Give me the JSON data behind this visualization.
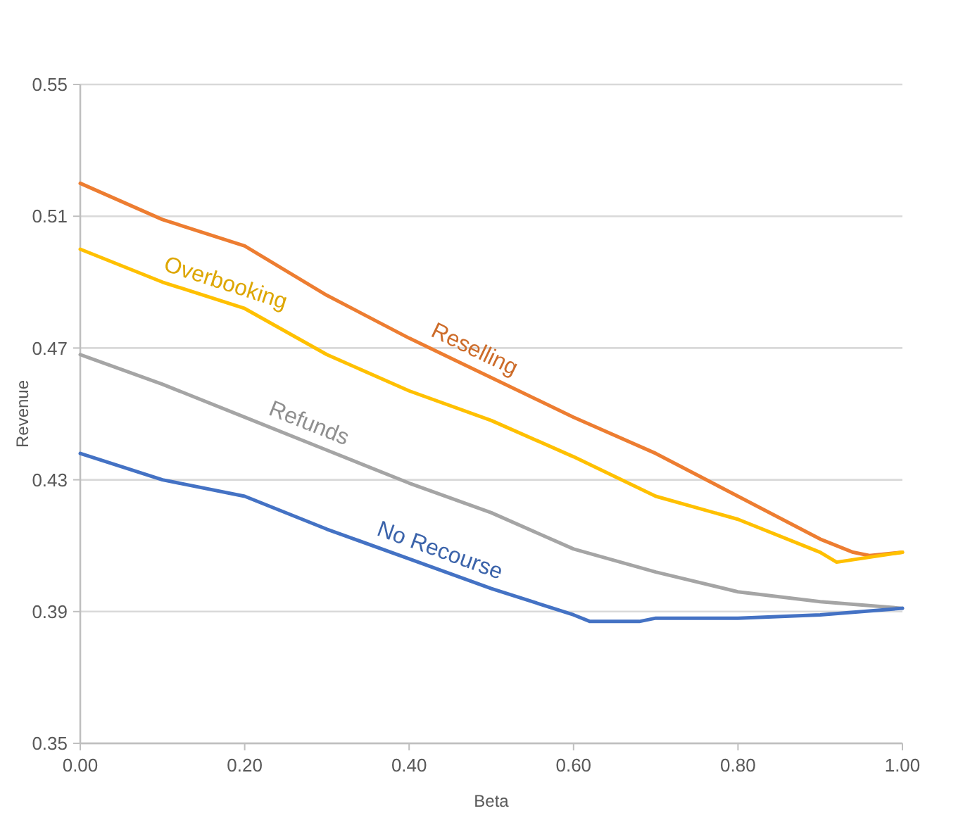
{
  "chart_data": {
    "type": "line",
    "xlabel": "Beta",
    "ylabel": "Revenue",
    "xlim": [
      0,
      1
    ],
    "ylim": [
      0.35,
      0.55
    ],
    "xticks": [
      {
        "value": 0,
        "label": "0.00"
      },
      {
        "value": 0.2,
        "label": "0.20"
      },
      {
        "value": 0.4,
        "label": "0.40"
      },
      {
        "value": 0.6,
        "label": "0.60"
      },
      {
        "value": 0.8,
        "label": "0.80"
      },
      {
        "value": 1,
        "label": "1.00"
      }
    ],
    "yticks": [
      0.35,
      0.39,
      0.43,
      0.47,
      0.51,
      0.55
    ],
    "grid": "y",
    "marker": "none",
    "line_style": "solid",
    "series": [
      {
        "name": "Reselling",
        "color": "#ed7d31",
        "x": [
          0,
          0.1,
          0.2,
          0.3,
          0.4,
          0.5,
          0.6,
          0.7,
          0.8,
          0.9,
          0.94,
          0.96,
          1
        ],
        "values": [
          0.52,
          0.509,
          0.501,
          0.486,
          0.473,
          0.461,
          0.449,
          0.438,
          0.425,
          0.412,
          0.408,
          0.407,
          0.408
        ]
      },
      {
        "name": "Overbooking",
        "color": "#ffc000",
        "x": [
          0,
          0.1,
          0.2,
          0.3,
          0.4,
          0.5,
          0.6,
          0.7,
          0.8,
          0.9,
          0.92,
          1
        ],
        "values": [
          0.5,
          0.49,
          0.482,
          0.468,
          0.457,
          0.448,
          0.437,
          0.425,
          0.418,
          0.408,
          0.405,
          0.408
        ]
      },
      {
        "name": "Refunds",
        "color": "#a5a5a5",
        "x": [
          0,
          0.1,
          0.2,
          0.3,
          0.4,
          0.5,
          0.6,
          0.7,
          0.8,
          0.9,
          1
        ],
        "values": [
          0.468,
          0.459,
          0.449,
          0.439,
          0.429,
          0.42,
          0.409,
          0.402,
          0.396,
          0.393,
          0.391
        ]
      },
      {
        "name": "No Recourse",
        "color": "#4472c4",
        "x": [
          0,
          0.1,
          0.2,
          0.3,
          0.4,
          0.5,
          0.6,
          0.62,
          0.68,
          0.7,
          0.8,
          0.9,
          1
        ],
        "values": [
          0.438,
          0.43,
          0.425,
          0.415,
          0.406,
          0.397,
          0.389,
          0.387,
          0.387,
          0.388,
          0.388,
          0.389,
          0.391
        ]
      }
    ]
  }
}
